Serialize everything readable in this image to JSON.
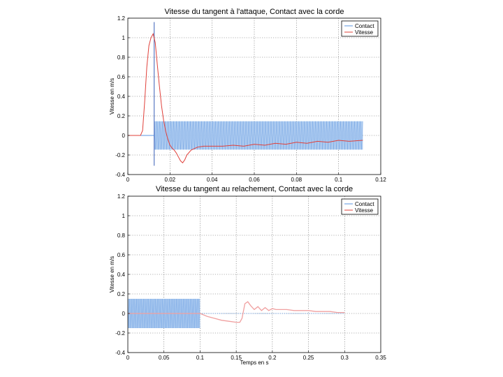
{
  "colors": {
    "contact": "#5b95e0",
    "contact_fill": "#a9c8ef",
    "vitesse": "#e0403a",
    "vitesse_light": "#f0a0a0",
    "grid": "#000000"
  },
  "chart_data": [
    {
      "type": "line",
      "title": "Vitesse du tangent à l'attaque, Contact avec la corde",
      "xlabel": "",
      "ylabel": "Vitesse en m/s",
      "xlim": [
        0,
        0.12
      ],
      "ylim": [
        -0.4,
        1.2
      ],
      "xticks": [
        "0",
        "0.02",
        "0.04",
        "0.06",
        "0.08",
        "0.1",
        "0.12"
      ],
      "yticks": [
        "-0.4",
        "-0.2",
        "0",
        "0.2",
        "0.4",
        "0.6",
        "0.8",
        "1",
        "1.2"
      ],
      "grid": true,
      "legend_position": "top-right",
      "series": [
        {
          "name": "Contact",
          "kind": "oscillating band",
          "x": [
            0.0125,
            0.0125,
            0.0125,
            0.0125,
            0.1115
          ],
          "y": [
            -0.31,
            1.16,
            0.14,
            -0.14,
            0.0
          ],
          "band_x": [
            0.0125,
            0.1115
          ],
          "band_y": [
            -0.145,
            0.145
          ]
        },
        {
          "name": "Vitesse",
          "x": [
            0,
            0.006,
            0.007,
            0.008,
            0.009,
            0.01,
            0.011,
            0.012,
            0.013,
            0.014,
            0.015,
            0.016,
            0.017,
            0.018,
            0.019,
            0.02,
            0.021,
            0.022,
            0.023,
            0.024,
            0.025,
            0.026,
            0.027,
            0.028,
            0.03,
            0.033,
            0.036,
            0.04,
            0.045,
            0.05,
            0.055,
            0.06,
            0.065,
            0.07,
            0.075,
            0.08,
            0.085,
            0.09,
            0.095,
            0.1,
            0.105,
            0.1115
          ],
          "y": [
            0,
            0,
            0.05,
            0.35,
            0.7,
            0.92,
            1.0,
            1.04,
            0.95,
            0.72,
            0.5,
            0.3,
            0.15,
            0.04,
            -0.04,
            -0.1,
            -0.13,
            -0.15,
            -0.18,
            -0.22,
            -0.26,
            -0.28,
            -0.25,
            -0.2,
            -0.15,
            -0.12,
            -0.11,
            -0.11,
            -0.11,
            -0.1,
            -0.11,
            -0.09,
            -0.1,
            -0.08,
            -0.09,
            -0.07,
            -0.08,
            -0.06,
            -0.07,
            -0.05,
            -0.06,
            -0.05
          ]
        }
      ]
    },
    {
      "type": "line",
      "title": "Vitesse du tangent au relachement, Contact avec la corde",
      "xlabel": "Temps en s",
      "ylabel": "Vitesse en m/s",
      "xlim": [
        0,
        0.35
      ],
      "ylim": [
        -0.4,
        1.2
      ],
      "xticks": [
        "0",
        "0.05",
        "0.1",
        "0.15",
        "0.2",
        "0.25",
        "0.3",
        "0.35"
      ],
      "yticks": [
        "-0.4",
        "-0.2",
        "0",
        "0.2",
        "0.4",
        "0.6",
        "0.8",
        "1",
        "1.2"
      ],
      "grid": true,
      "legend_position": "top-right",
      "series": [
        {
          "name": "Contact",
          "kind": "oscillating band",
          "x": [
            0,
            0.1,
            0.1,
            0.3
          ],
          "y": [
            0,
            0,
            0,
            0
          ],
          "band_x": [
            0,
            0.1
          ],
          "band_y": [
            -0.15,
            0.15
          ]
        },
        {
          "name": "Vitesse",
          "x": [
            0,
            0.05,
            0.1,
            0.11,
            0.12,
            0.13,
            0.14,
            0.15,
            0.155,
            0.158,
            0.162,
            0.166,
            0.17,
            0.175,
            0.18,
            0.185,
            0.19,
            0.195,
            0.2,
            0.205,
            0.21,
            0.22,
            0.23,
            0.24,
            0.25,
            0.26,
            0.27,
            0.28,
            0.29,
            0.3
          ],
          "y": [
            0,
            0,
            0,
            -0.03,
            -0.05,
            -0.07,
            -0.08,
            -0.09,
            -0.09,
            -0.05,
            0.1,
            0.12,
            0.08,
            0.04,
            0.07,
            0.03,
            0.06,
            0.03,
            0.05,
            0.04,
            0.04,
            0.04,
            0.03,
            0.03,
            0.03,
            0.02,
            0.02,
            0.02,
            0.01,
            0.01
          ]
        }
      ]
    }
  ]
}
